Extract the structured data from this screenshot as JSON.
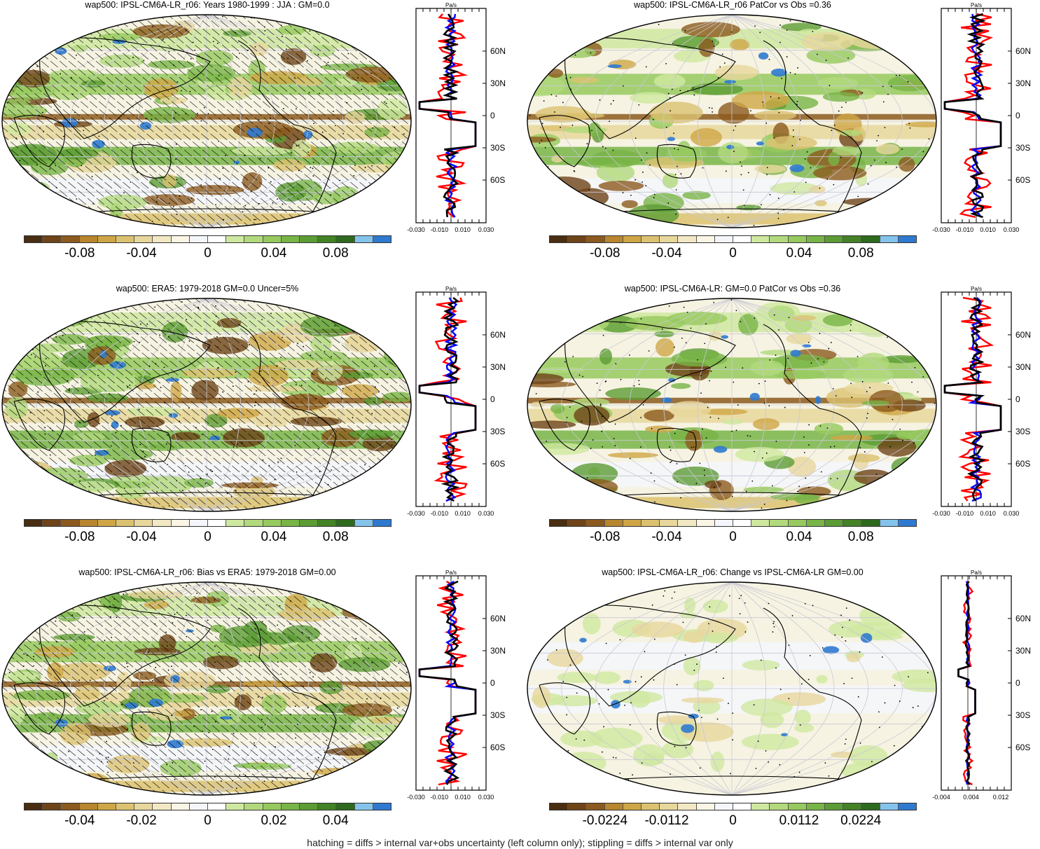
{
  "panels": [
    {
      "title": "wap500: IPSL-CM6A-LR_r06: Years 1980-1999 : JJA : GM=0.0",
      "colorbar_labels": [
        "-0.08",
        "-0.04",
        "0",
        "0.04",
        "0.08"
      ],
      "profile_unit": "Pa/s",
      "profile_xticks": [
        "-0.030",
        "-0.010",
        "0.010",
        "0.030"
      ],
      "profile_yticks": [
        "60N",
        "30N",
        "0",
        "30S",
        "60S"
      ],
      "hatched": true
    },
    {
      "title": "wap500: IPSL-CM6A-LR_r06 PatCor vs Obs =0.36",
      "colorbar_labels": [
        "-0.08",
        "-0.04",
        "0",
        "0.04",
        "0.08"
      ],
      "profile_unit": "Pa/s",
      "profile_xticks": [
        "-0.030",
        "-0.010",
        "0.010",
        "0.030"
      ],
      "profile_yticks": [
        "60N",
        "30N",
        "0",
        "30S",
        "60S"
      ],
      "hatched": false
    },
    {
      "title": "wap500: ERA5: 1979-2018 GM=0.0 Uncer=5%",
      "colorbar_labels": [
        "-0.08",
        "-0.04",
        "0",
        "0.04",
        "0.08"
      ],
      "profile_unit": "Pa/s",
      "profile_xticks": [
        "-0.030",
        "-0.010",
        "0.010",
        "0.030"
      ],
      "profile_yticks": [
        "60N",
        "30N",
        "0",
        "30S",
        "60S"
      ],
      "hatched": true
    },
    {
      "title": "wap500: IPSL-CM6A-LR: GM=0.0 PatCor vs Obs =0.36",
      "colorbar_labels": [
        "-0.08",
        "-0.04",
        "0",
        "0.04",
        "0.08"
      ],
      "profile_unit": "Pa/s",
      "profile_xticks": [
        "-0.030",
        "-0.010",
        "0.010",
        "0.030"
      ],
      "profile_yticks": [
        "60N",
        "30N",
        "0",
        "30S",
        "60S"
      ],
      "hatched": false
    },
    {
      "title": "wap500: IPSL-CM6A-LR_r06: Bias vs ERA5: 1979-2018 GM=0.00",
      "colorbar_labels": [
        "-0.04",
        "-0.02",
        "0",
        "0.02",
        "0.04"
      ],
      "profile_unit": "Pa/s",
      "profile_xticks": [
        "-0.030",
        "-0.010",
        "0.010",
        "0.030"
      ],
      "profile_yticks": [
        "60N",
        "30N",
        "0",
        "30S",
        "60S"
      ],
      "hatched": true
    },
    {
      "title": "wap500: IPSL-CM6A-LR_r06: Change vs IPSL-CM6A-LR GM=0.00",
      "colorbar_labels": [
        "-0.0224",
        "-0.0112",
        "0",
        "0.0112",
        "0.0224"
      ],
      "profile_unit": "Pa/s",
      "profile_xticks": [
        "-0.004",
        "0.004",
        "0.012"
      ],
      "profile_yticks": [
        "60N",
        "30N",
        "0",
        "30S",
        "60S"
      ],
      "hatched": false
    }
  ],
  "colorbar_colors": [
    "#4a2e12",
    "#6e4418",
    "#8c5a1e",
    "#b8862e",
    "#cfa646",
    "#dcc270",
    "#e8d79c",
    "#f2e8c4",
    "#faf5e4",
    "#f4f6fb",
    "#ffffff",
    "#cfe8a0",
    "#b2d97c",
    "#96c95e",
    "#78b446",
    "#5c9c34",
    "#448226",
    "#2e6a1e",
    "#84c4ec",
    "#2f7ad0"
  ],
  "series_colors": {
    "model": "#ff0000",
    "obs": "#0000ff",
    "mean": "#000000"
  },
  "footnote": "hatching = diffs > internal var+obs uncertainty (left column only); stippling = diffs > internal var only"
}
